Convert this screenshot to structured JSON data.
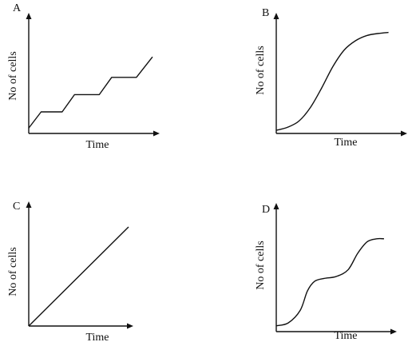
{
  "chart_data": [
    {
      "type": "line",
      "panel_label": "A",
      "xlabel": "Time",
      "ylabel": "No of cells",
      "xlim": [
        0,
        10
      ],
      "ylim": [
        0,
        10
      ],
      "axis_values_printed": false,
      "series": [
        {
          "x": [
            0,
            1.0,
            2.7,
            3.7,
            5.7,
            6.7,
            8.7,
            10.0
          ],
          "y": [
            0.5,
            2.0,
            2.0,
            3.6,
            3.6,
            5.2,
            5.2,
            7.1
          ]
        }
      ]
    },
    {
      "type": "line",
      "panel_label": "B",
      "xlabel": "Time",
      "ylabel": "No of cells",
      "xlim": [
        0,
        10
      ],
      "ylim": [
        0,
        10
      ],
      "axis_values_printed": false,
      "series": [
        {
          "x": [
            0,
            1.0,
            2.0,
            3.0,
            4.0,
            5.0,
            6.0,
            7.0,
            8.0,
            9.0,
            9.9
          ],
          "y": [
            0.3,
            0.6,
            1.2,
            2.5,
            4.4,
            6.5,
            8.1,
            9.0,
            9.5,
            9.7,
            9.8
          ]
        }
      ]
    },
    {
      "type": "line",
      "panel_label": "C",
      "xlabel": "Time",
      "ylabel": "No of cells",
      "xlim": [
        0,
        10
      ],
      "ylim": [
        0,
        10
      ],
      "axis_values_printed": false,
      "series": [
        {
          "x": [
            0,
            10
          ],
          "y": [
            0,
            10
          ]
        }
      ]
    },
    {
      "type": "line",
      "panel_label": "D",
      "xlabel": "Time",
      "ylabel": "No of cells",
      "xlim": [
        0,
        10
      ],
      "ylim": [
        0,
        10
      ],
      "axis_values_printed": false,
      "series": [
        {
          "x": [
            0,
            1.0,
            2.0,
            2.6,
            3.2,
            4.0,
            5.0,
            6.0,
            6.8,
            7.6,
            8.4,
            9.0
          ],
          "y": [
            0.6,
            0.9,
            2.2,
            4.2,
            5.2,
            5.5,
            5.7,
            6.4,
            8.1,
            9.3,
            9.6,
            9.6
          ]
        }
      ]
    }
  ]
}
